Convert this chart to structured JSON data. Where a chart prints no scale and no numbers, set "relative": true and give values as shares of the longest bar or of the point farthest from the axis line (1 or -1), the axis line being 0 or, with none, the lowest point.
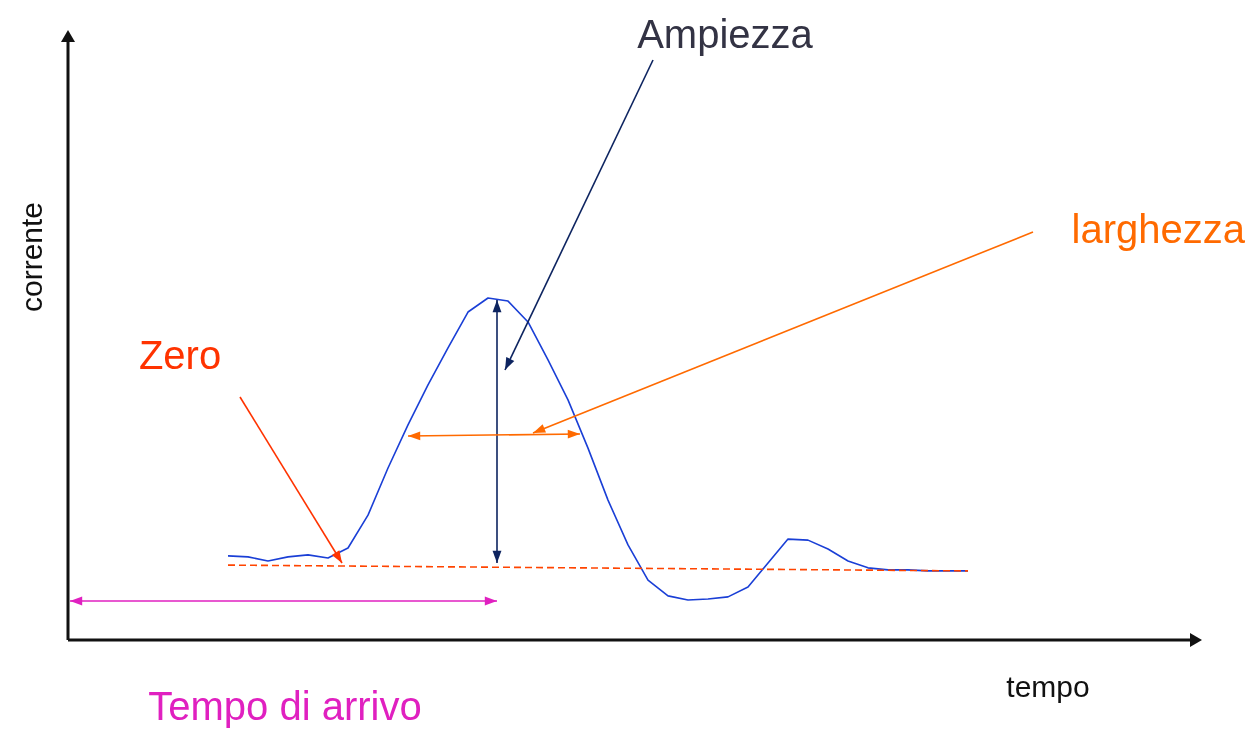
{
  "chart_data": {
    "type": "line",
    "relative": true,
    "xlabel": "tempo",
    "ylabel": "corrente",
    "categories": [
      null,
      null,
      null,
      null,
      null,
      null,
      null,
      null,
      null,
      null,
      null,
      null,
      null,
      null,
      null,
      null,
      null,
      null,
      null,
      null,
      null,
      null,
      null,
      null,
      null,
      null,
      null,
      null,
      null,
      null,
      null,
      null,
      null,
      null,
      null,
      null,
      null,
      null,
      null,
      null,
      null,
      null,
      null,
      null,
      null,
      null,
      null,
      null,
      null,
      null,
      null,
      null,
      null,
      null,
      null,
      null
    ],
    "series": [
      {
        "color": "#1a3fd6",
        "values": [
          null,
          null,
          null,
          null,
          null,
          null,
          null,
          null,
          0.246,
          0.243,
          0.231,
          0.243,
          0.249,
          0.24,
          0.269,
          0.365,
          0.503,
          0.629,
          0.746,
          0.854,
          0.959,
          1,
          0.991,
          0.93,
          0.819,
          0.702,
          0.561,
          0.409,
          0.278,
          0.175,
          0.129,
          0.117,
          0.12,
          0.126,
          0.155,
          0.225,
          0.295,
          0.292,
          0.266,
          0.231,
          0.211,
          0.205,
          0.205,
          0.202,
          0.202,
          0.202,
          null,
          null,
          null,
          null,
          null,
          null,
          null,
          null,
          null,
          null
        ]
      },
      {
        "color": "#ff4400",
        "line_style": "dashed",
        "values": [
          null,
          null,
          null,
          null,
          null,
          null,
          null,
          null,
          0.219,
          null,
          null,
          null,
          null,
          null,
          null,
          null,
          null,
          null,
          null,
          null,
          null,
          null,
          null,
          null,
          null,
          null,
          null,
          null,
          null,
          null,
          null,
          null,
          null,
          null,
          null,
          null,
          null,
          null,
          null,
          null,
          null,
          null,
          null,
          null,
          null,
          0.202,
          null,
          null,
          null,
          null,
          null,
          null,
          null,
          null,
          null,
          null
        ]
      }
    ],
    "annotations": [
      "Ampiezza",
      "larghezza",
      "Zero",
      "Tempo di arrivo"
    ]
  }
}
